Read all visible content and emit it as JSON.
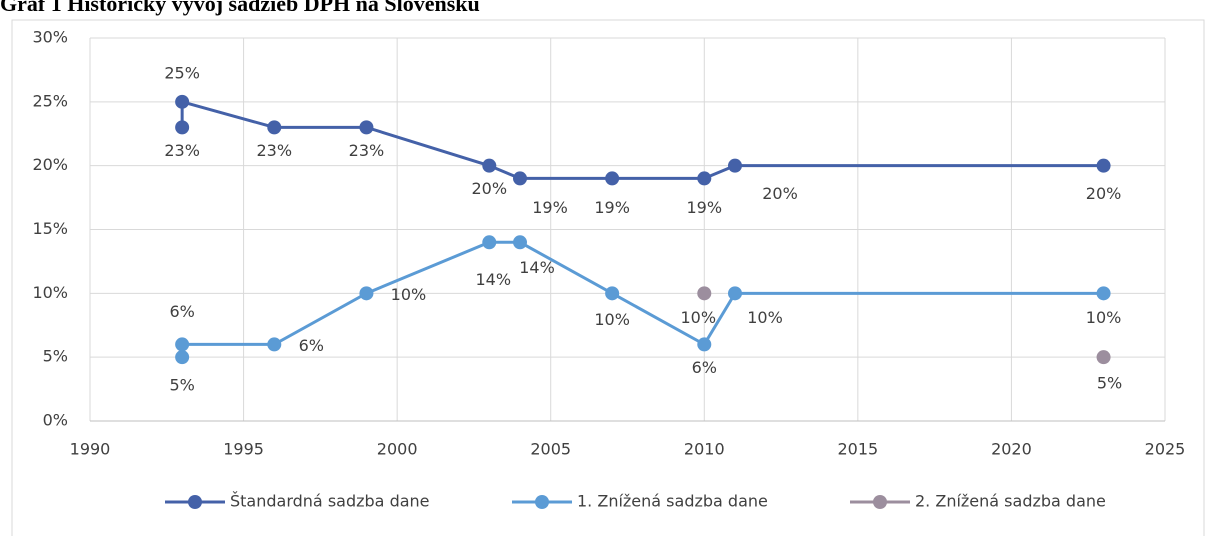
{
  "chart_data": {
    "type": "line",
    "title": "Graf 1 Historický vývoj sadzieb DPH na Slovensku",
    "xlim": [
      1990,
      2025
    ],
    "xticks": [
      1990,
      1995,
      2000,
      2005,
      2010,
      2015,
      2020,
      2025
    ],
    "ylim": [
      0,
      30
    ],
    "yticks": [
      {
        "value": 0,
        "label": "0%"
      },
      {
        "value": 5,
        "label": "5%"
      },
      {
        "value": 10,
        "label": "10%"
      },
      {
        "value": 15,
        "label": "15%"
      },
      {
        "value": 20,
        "label": "20%"
      },
      {
        "value": 25,
        "label": "25%"
      },
      {
        "value": 30,
        "label": "30%"
      }
    ],
    "grid": true,
    "legend": "bottom",
    "series": [
      {
        "name": "Štandardná sadzba dane",
        "color": "#4461a8",
        "line": true,
        "x": [
          1993,
          1993,
          1996,
          1999,
          2003,
          2004,
          2007,
          2010,
          2011,
          2023
        ],
        "values": [
          23,
          25,
          23,
          23,
          20,
          19,
          19,
          19,
          20,
          20
        ],
        "value_labels": [
          "23%",
          "25%",
          "23%",
          "23%",
          "20%",
          "19%",
          "19%",
          "19%",
          "20%",
          "20%"
        ]
      },
      {
        "name": "1. Znížená sadzba dane",
        "color": "#5b9bd5",
        "line": true,
        "x": [
          1993,
          1993,
          1996,
          1999,
          2003,
          2004,
          2007,
          2010,
          2011,
          2023
        ],
        "values": [
          5,
          6,
          6,
          10,
          14,
          14,
          10,
          6,
          10,
          10
        ],
        "value_labels": [
          "5%",
          "6%",
          "6%",
          "10%",
          "14%",
          "14%",
          "10%",
          "6%",
          "10%",
          "10%"
        ]
      },
      {
        "name": "2. Znížená sadzba dane",
        "color": "#9c8e9e",
        "line": false,
        "x": [
          2010,
          2023
        ],
        "values": [
          10,
          5
        ],
        "value_labels": [
          "10%",
          "5%"
        ]
      }
    ]
  }
}
